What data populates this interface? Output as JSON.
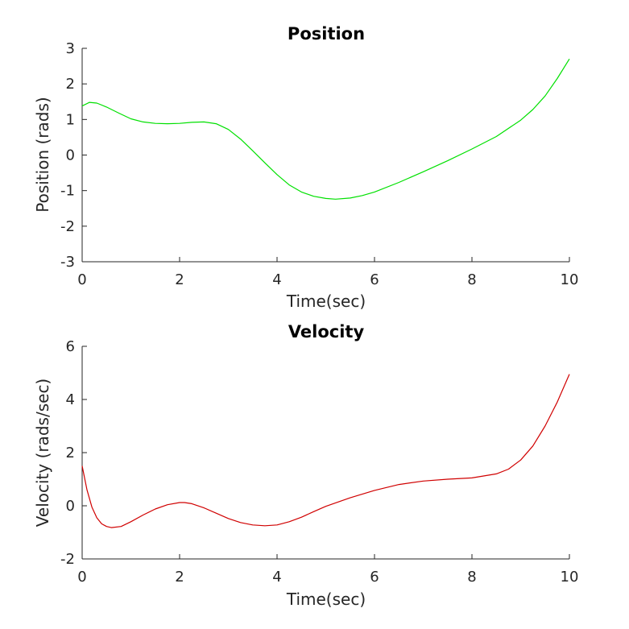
{
  "chart_data": [
    {
      "type": "line",
      "title": "Position",
      "xlabel": "Time(sec)",
      "ylabel": "Position (rads)",
      "xlim": [
        0,
        10
      ],
      "ylim": [
        -3,
        3
      ],
      "xticks": [
        0,
        2,
        4,
        6,
        8,
        10
      ],
      "yticks": [
        -3,
        -2,
        -1,
        0,
        1,
        2,
        3
      ],
      "grid": false,
      "line_color": "#00e000",
      "series": [
        {
          "x": [
            0,
            0.15,
            0.3,
            0.5,
            0.75,
            1.0,
            1.25,
            1.5,
            1.75,
            2.0,
            2.25,
            2.5,
            2.75,
            3.0,
            3.25,
            3.5,
            3.75,
            4.0,
            4.25,
            4.5,
            4.75,
            5.0,
            5.2,
            5.5,
            5.75,
            6.0,
            6.5,
            7.0,
            7.5,
            8.0,
            8.5,
            9.0,
            9.25,
            9.5,
            9.75,
            10.0
          ],
          "y": [
            1.38,
            1.48,
            1.46,
            1.35,
            1.18,
            1.02,
            0.93,
            0.89,
            0.88,
            0.89,
            0.92,
            0.93,
            0.88,
            0.72,
            0.45,
            0.12,
            -0.22,
            -0.55,
            -0.84,
            -1.04,
            -1.16,
            -1.22,
            -1.24,
            -1.21,
            -1.14,
            -1.04,
            -0.77,
            -0.47,
            -0.16,
            0.17,
            0.52,
            0.98,
            1.28,
            1.66,
            2.15,
            2.7
          ]
        }
      ]
    },
    {
      "type": "line",
      "title": "Velocity",
      "xlabel": "Time(sec)",
      "ylabel": "Velocity (rads/sec)",
      "xlim": [
        0,
        10
      ],
      "ylim": [
        -2,
        6
      ],
      "xticks": [
        0,
        2,
        4,
        6,
        8,
        10
      ],
      "yticks": [
        -2,
        0,
        2,
        4,
        6
      ],
      "grid": false,
      "line_color": "#d00000",
      "series": [
        {
          "x": [
            0,
            0.1,
            0.2,
            0.3,
            0.4,
            0.5,
            0.6,
            0.8,
            1.0,
            1.25,
            1.5,
            1.75,
            2.0,
            2.1,
            2.25,
            2.5,
            2.75,
            3.0,
            3.25,
            3.5,
            3.75,
            4.0,
            4.25,
            4.5,
            4.75,
            5.0,
            5.5,
            6.0,
            6.5,
            7.0,
            7.5,
            8.0,
            8.5,
            8.75,
            9.0,
            9.25,
            9.5,
            9.75,
            10.0
          ],
          "y": [
            1.5,
            0.6,
            -0.05,
            -0.45,
            -0.68,
            -0.78,
            -0.82,
            -0.78,
            -0.6,
            -0.35,
            -0.12,
            0.04,
            0.12,
            0.12,
            0.08,
            -0.08,
            -0.28,
            -0.48,
            -0.63,
            -0.72,
            -0.75,
            -0.72,
            -0.6,
            -0.43,
            -0.22,
            -0.02,
            0.3,
            0.58,
            0.8,
            0.93,
            1.0,
            1.05,
            1.2,
            1.38,
            1.72,
            2.25,
            3.0,
            3.9,
            4.95
          ]
        }
      ]
    }
  ]
}
